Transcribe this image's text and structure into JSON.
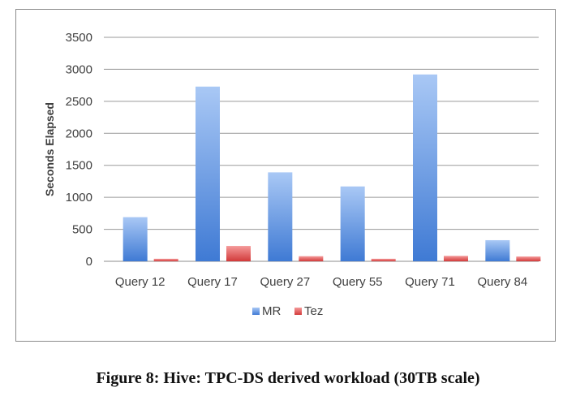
{
  "caption": "Figure 8: Hive: TPC-DS derived workload (30TB scale)",
  "chart_data": {
    "type": "bar",
    "categories": [
      "Query 12",
      "Query 17",
      "Query 27",
      "Query 55",
      "Query 71",
      "Query 84"
    ],
    "series": [
      {
        "name": "MR",
        "values": [
          690,
          2730,
          1390,
          1170,
          2920,
          330
        ],
        "color": "#5b8fd9"
      },
      {
        "name": "Tez",
        "values": [
          40,
          240,
          80,
          40,
          85,
          75
        ],
        "color": "#e05050"
      }
    ],
    "ylabel": "Seconds Elapsed",
    "ylim": [
      0,
      3500
    ],
    "yticks": [
      0,
      500,
      1000,
      1500,
      2000,
      2500,
      3000,
      3500
    ],
    "grid": true,
    "legend": "bottom"
  }
}
